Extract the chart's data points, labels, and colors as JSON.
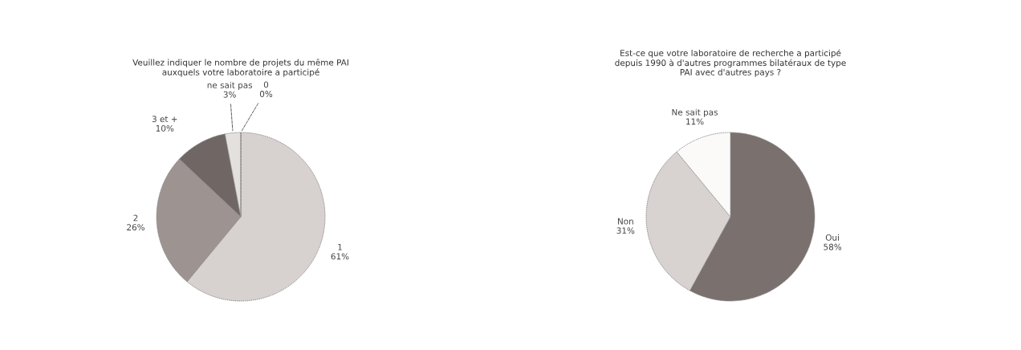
{
  "chart_data": [
    {
      "type": "pie",
      "title": "Veuillez indiquer le nombre de projets du même PAI\nauxquels votre laboratoire a participé",
      "categories": [
        "1",
        "2",
        "3 et +",
        "ne sait pas",
        "0"
      ],
      "values": [
        61,
        26,
        10,
        3,
        0
      ],
      "colors": [
        "#d7d1cf",
        "#9d9391",
        "#706765",
        "#e4e0de",
        "#ffffff"
      ],
      "value_labels": [
        "61%",
        "26%",
        "10%",
        "3%",
        "0%"
      ],
      "legend": false
    },
    {
      "type": "pie",
      "title": "Est-ce que votre laboratoire de recherche a participé\ndepuis 1990 à d'autres programmes bilatéraux de type\nPAI avec d'autres pays ?",
      "categories": [
        "Oui",
        "Non",
        "Ne sait pas"
      ],
      "values": [
        58,
        31,
        11
      ],
      "colors": [
        "#7a706e",
        "#d8d2d0",
        "#fbfaf9"
      ],
      "value_labels": [
        "58%",
        "31%",
        "11%"
      ],
      "legend": false
    }
  ]
}
